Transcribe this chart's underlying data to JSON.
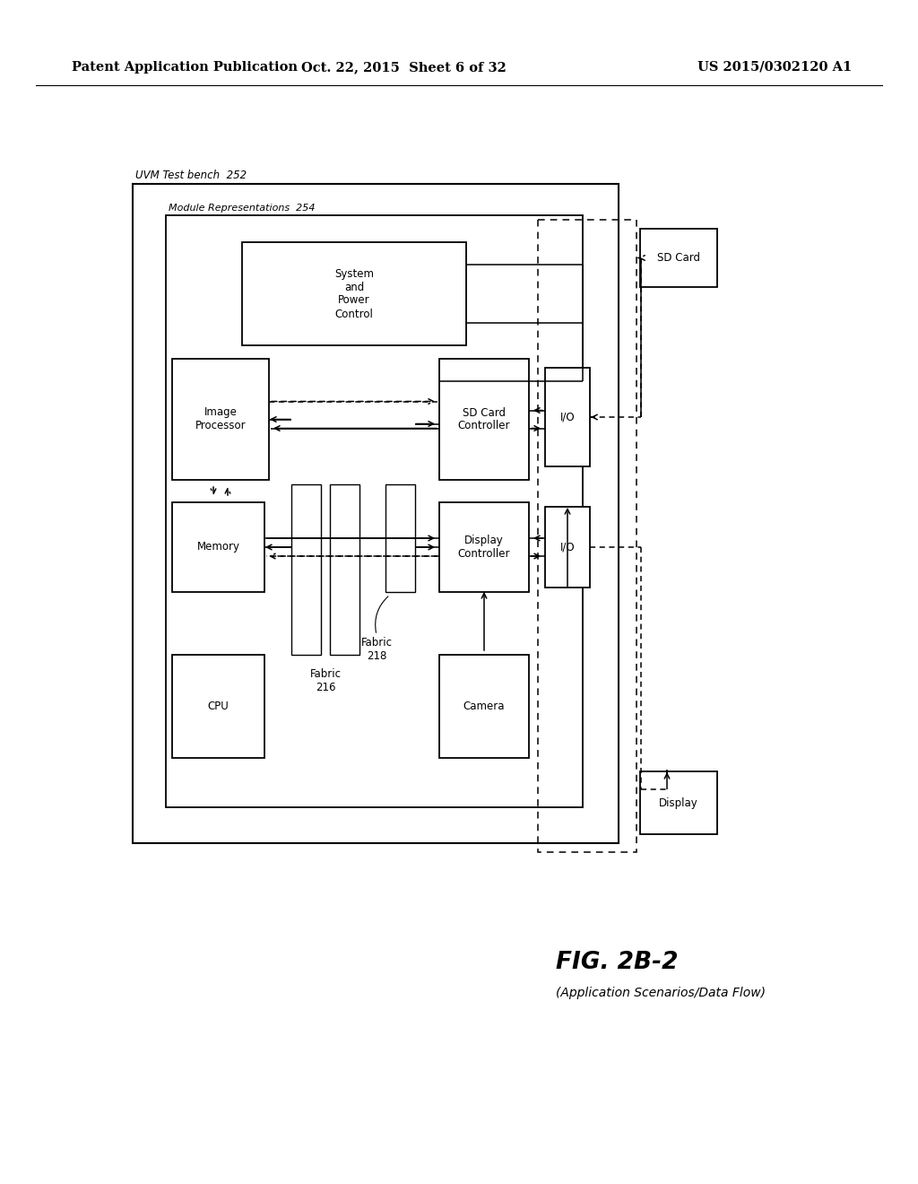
{
  "header_left": "Patent Application Publication",
  "header_mid": "Oct. 22, 2015  Sheet 6 of 32",
  "header_right": "US 2015/0302120 A1",
  "fig_label": "FIG. 2B-2",
  "fig_sublabel": "(Application Scenarios/Data Flow)",
  "label_uvm": "UVM Test bench  252",
  "label_module": "Module Representations  254",
  "background": "#ffffff"
}
